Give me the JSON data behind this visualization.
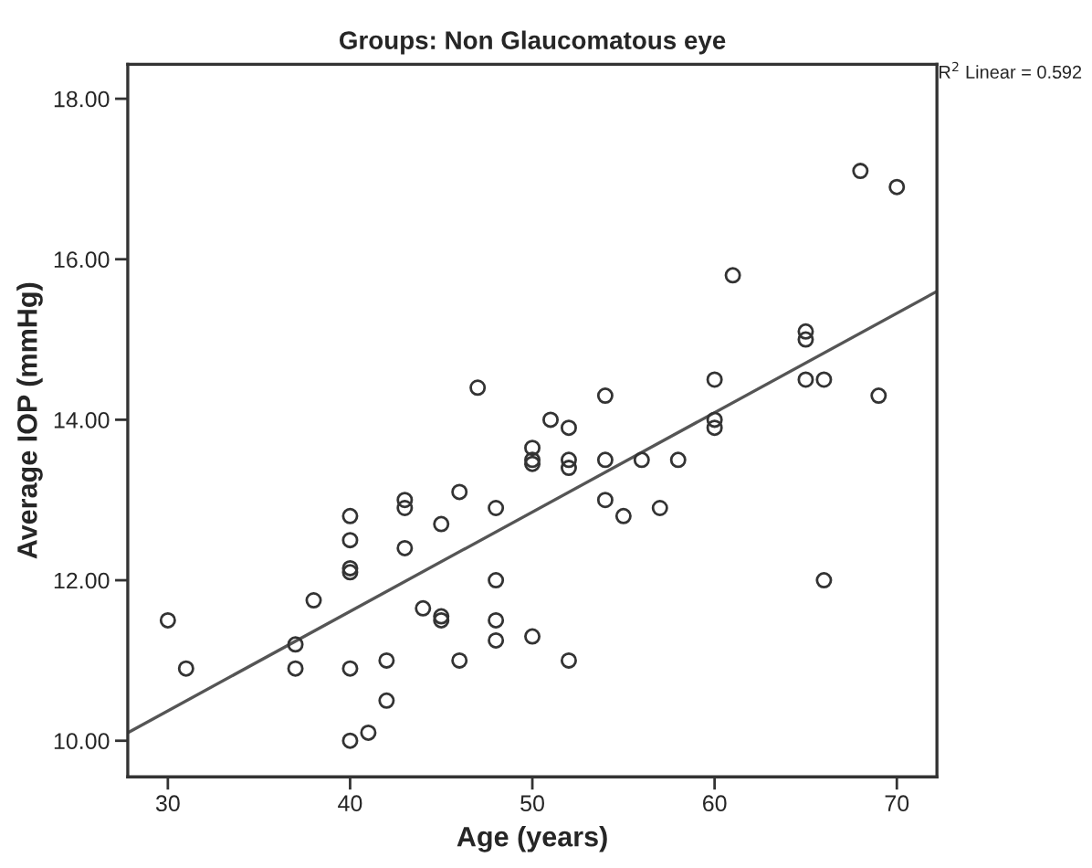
{
  "chart_data": {
    "type": "scatter",
    "title": "Groups: Non Glaucomatous eye",
    "xlabel": "Age (years)",
    "ylabel": "Average IOP (mmHg)",
    "annotations": [
      "R$^{2}$ Linear = 0.592"
    ],
    "grid": false,
    "legend": false,
    "xlim": [
      27.8,
      72.2
    ],
    "xticks": [
      30,
      40,
      50,
      60,
      70
    ],
    "ylim": [
      9.55,
      18.43
    ],
    "yticks": [
      {
        "value": 10,
        "label": "10.00"
      },
      {
        "value": 12,
        "label": "12.00"
      },
      {
        "value": 14,
        "label": "14.00"
      },
      {
        "value": 16,
        "label": "16.00"
      },
      {
        "value": 18,
        "label": "18.00"
      }
    ],
    "series": [
      {
        "color": "#333333",
        "marker": "circle",
        "x": [
          30,
          31,
          37,
          37,
          38,
          40,
          40,
          40,
          40,
          40,
          40,
          41,
          42,
          42,
          43,
          43,
          43,
          44,
          45,
          45,
          45,
          46,
          46,
          47,
          48,
          48,
          48,
          48,
          50,
          50,
          50,
          50,
          51,
          52,
          52,
          52,
          52,
          54,
          54,
          54,
          55,
          56,
          57,
          58,
          60,
          60,
          60,
          61,
          65,
          65,
          65,
          66,
          66,
          68,
          69,
          70
        ],
        "values": [
          11.5,
          10.9,
          11.2,
          10.9,
          11.75,
          12.8,
          12.5,
          12.15,
          12.1,
          10.9,
          10.0,
          10.1,
          11.0,
          10.5,
          13.0,
          12.9,
          12.4,
          11.65,
          12.7,
          11.55,
          11.5,
          13.1,
          11.0,
          14.4,
          12.9,
          12.0,
          11.5,
          11.25,
          13.65,
          13.5,
          13.45,
          11.3,
          14.0,
          13.9,
          13.5,
          13.4,
          11.0,
          14.3,
          13.5,
          13.0,
          12.8,
          13.5,
          12.9,
          13.5,
          14.5,
          14.0,
          13.9,
          15.8,
          15.1,
          15.0,
          14.5,
          14.5,
          12.0,
          17.1,
          14.3,
          16.9
        ]
      },
      {
        "type": "line",
        "color": "#555555",
        "x": [
          27.8,
          72.2
        ],
        "values": [
          10.1,
          15.6
        ]
      }
    ]
  }
}
